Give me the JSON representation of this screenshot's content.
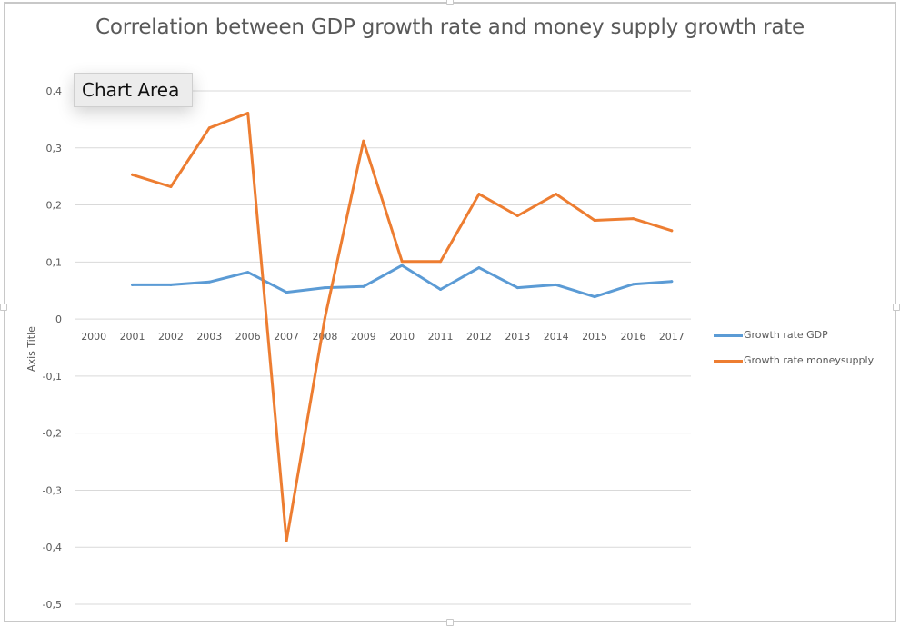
{
  "chart_data": {
    "type": "line",
    "title": "Correlation between GDP growth rate and money supply growth rate",
    "xlabel": "",
    "ylabel": "Axis Title",
    "categories": [
      "2000",
      "2001",
      "2002",
      "2003",
      "2006",
      "2007",
      "2008",
      "2009",
      "2010",
      "2011",
      "2012",
      "2013",
      "2014",
      "2015",
      "2016",
      "2017"
    ],
    "ylim": [
      -0.5,
      0.4
    ],
    "yticks": [
      0.4,
      0.3,
      0.2,
      0.1,
      0,
      -0.1,
      -0.2,
      -0.3,
      -0.4,
      -0.5
    ],
    "ytick_labels": [
      "0,4",
      "0,3",
      "0,2",
      "0,1",
      "0",
      "-0,1",
      "-0,2",
      "-0,3",
      "-0,4",
      "-0,5"
    ],
    "grid": true,
    "legend_position": "right",
    "series": [
      {
        "name": "Growth rate GDP",
        "color": "#5b9bd5",
        "values": [
          null,
          0.06,
          0.06,
          0.065,
          0.082,
          0.047,
          0.055,
          0.057,
          0.094,
          0.052,
          0.09,
          0.055,
          0.06,
          0.039,
          0.061,
          0.066
        ]
      },
      {
        "name": "Growth rate moneysupply",
        "color": "#ed7d31",
        "values": [
          null,
          0.253,
          0.232,
          0.335,
          0.361,
          -0.389,
          0.002,
          0.312,
          0.101,
          0.101,
          0.219,
          0.181,
          0.219,
          0.173,
          0.176,
          0.155
        ]
      }
    ]
  },
  "tooltip": {
    "label": "Chart Area"
  },
  "colors": {
    "gridline": "#d9d9d9",
    "text": "#595959"
  }
}
